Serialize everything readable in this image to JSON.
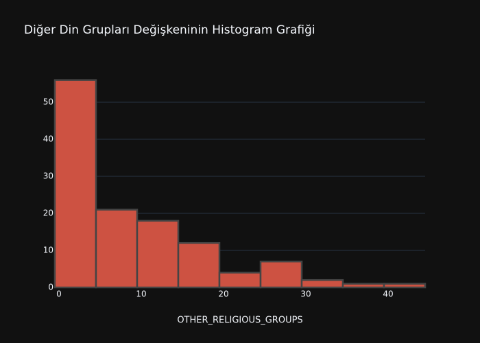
{
  "chart_data": {
    "type": "histogram",
    "title": "Diğer Din Grupları Değişkeninin Histogram Grafiği",
    "x_label": "OTHER_RELIGIOUS_GROUPS",
    "bins": [
      -0.5,
      4.5,
      9.5,
      14.5,
      19.5,
      24.5,
      29.5,
      34.5,
      39.5,
      44.5
    ],
    "values": [
      56,
      21,
      18,
      12,
      4,
      7,
      2,
      1,
      1
    ],
    "color": "#cd5242",
    "xlim": [
      -0.5,
      44.5
    ],
    "xticks": [
      0,
      10,
      20,
      30,
      40
    ],
    "ylim": [
      0,
      58.9
    ],
    "yticks": [
      0,
      10,
      20,
      30,
      40,
      50
    ],
    "grid": true
  }
}
